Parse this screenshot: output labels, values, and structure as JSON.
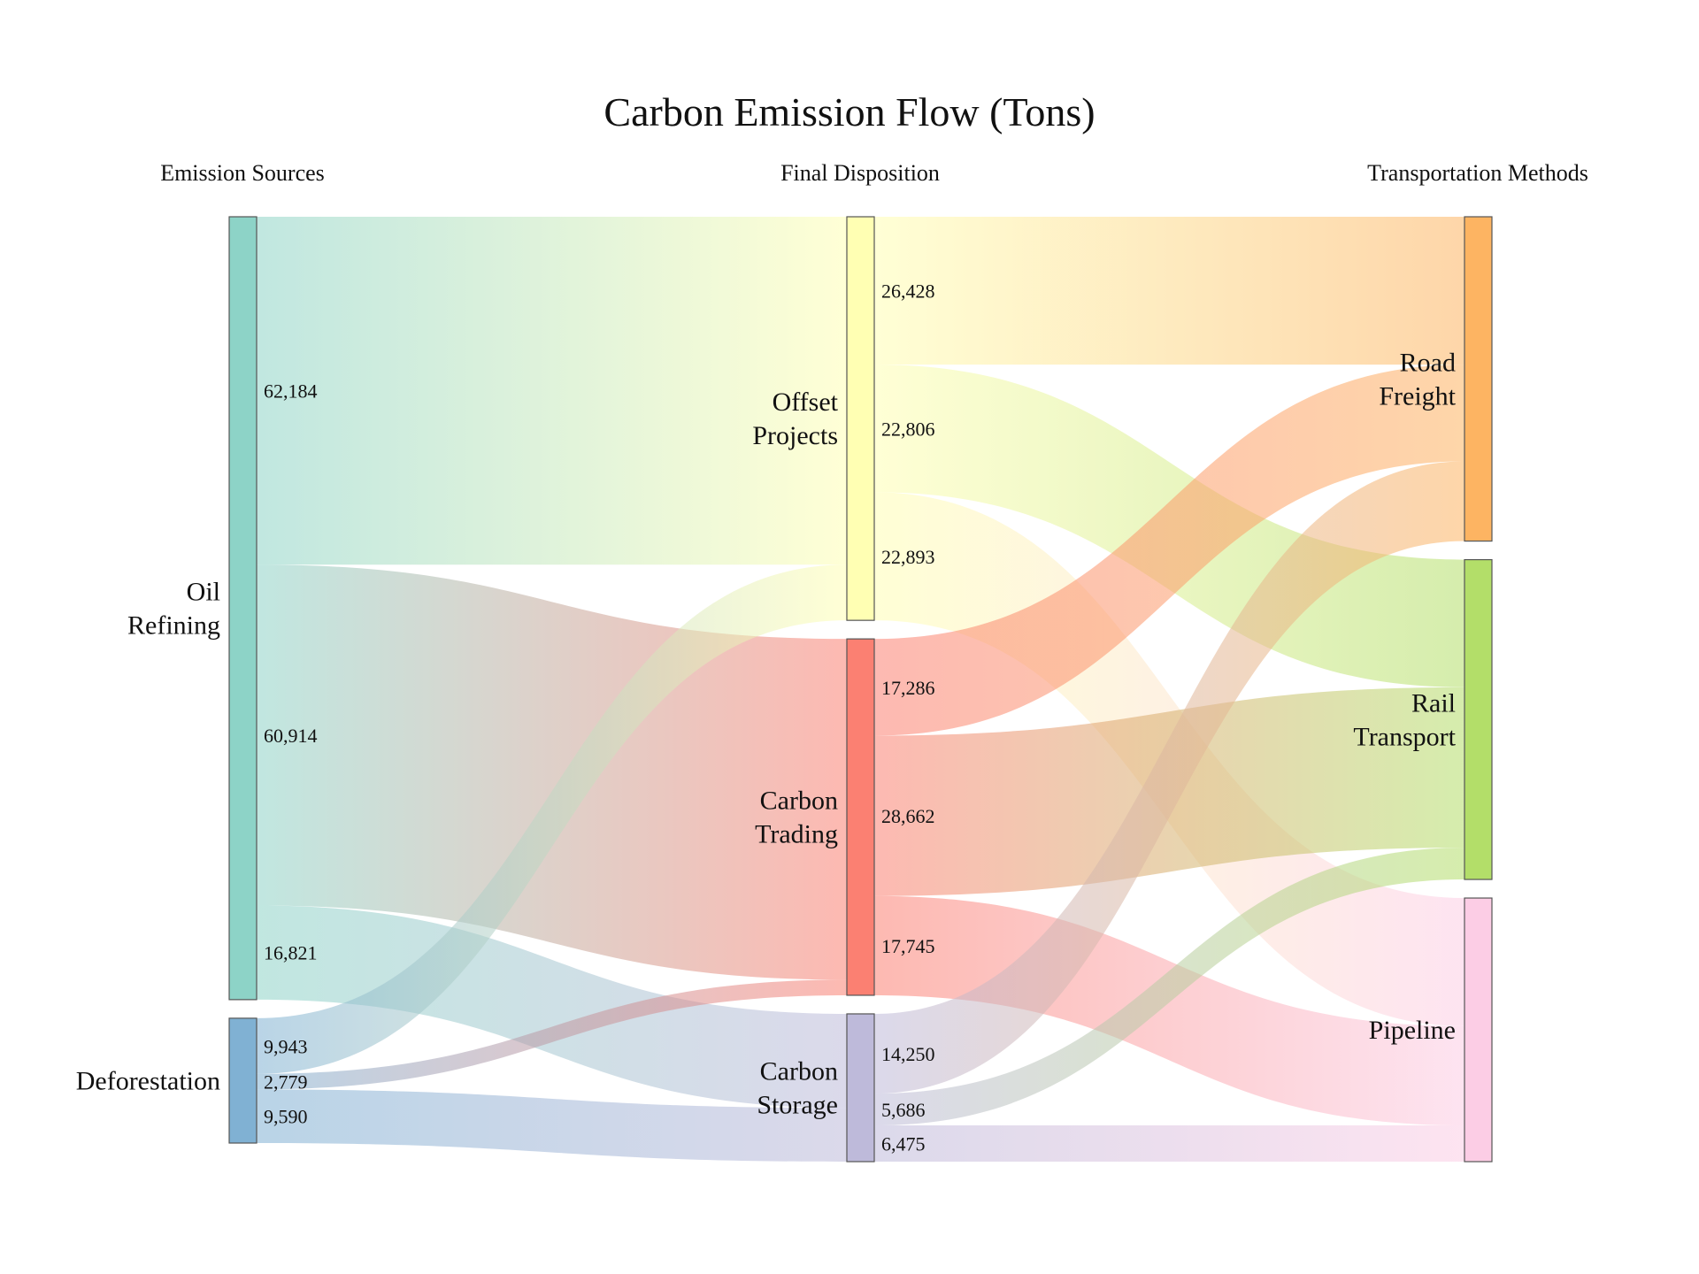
{
  "chart_data": {
    "type": "sankey",
    "title": "Carbon Emission Flow (Tons)",
    "column_headers": [
      "Emission Sources",
      "Final Disposition",
      "Transportation Methods"
    ],
    "nodes": [
      {
        "id": "oil",
        "label_lines": [
          "Oil",
          "Refining"
        ],
        "column": 0,
        "color": "#8dd3c7"
      },
      {
        "id": "def",
        "label_lines": [
          "Deforestation"
        ],
        "column": 0,
        "color": "#80b1d3"
      },
      {
        "id": "off",
        "label_lines": [
          "Offset",
          "Projects"
        ],
        "column": 1,
        "color": "#ffffb3"
      },
      {
        "id": "trd",
        "label_lines": [
          "Carbon",
          "Trading"
        ],
        "column": 1,
        "color": "#fb8072"
      },
      {
        "id": "sto",
        "label_lines": [
          "Carbon",
          "Storage"
        ],
        "column": 1,
        "color": "#bebada"
      },
      {
        "id": "road",
        "label_lines": [
          "Road",
          "Freight"
        ],
        "column": 2,
        "color": "#fdb462"
      },
      {
        "id": "rail",
        "label_lines": [
          "Rail",
          "Transport"
        ],
        "column": 2,
        "color": "#b3de69"
      },
      {
        "id": "pipe",
        "label_lines": [
          "Pipeline"
        ],
        "column": 2,
        "color": "#fccde5"
      }
    ],
    "links": [
      {
        "source": "oil",
        "target": "off",
        "value": 62184,
        "label": "62,184"
      },
      {
        "source": "oil",
        "target": "trd",
        "value": 60914,
        "label": "60,914"
      },
      {
        "source": "oil",
        "target": "sto",
        "value": 16821,
        "label": "16,821"
      },
      {
        "source": "def",
        "target": "off",
        "value": 9943,
        "label": "9,943"
      },
      {
        "source": "def",
        "target": "trd",
        "value": 2779,
        "label": "2,779"
      },
      {
        "source": "def",
        "target": "sto",
        "value": 9590,
        "label": "9,590"
      },
      {
        "source": "off",
        "target": "road",
        "value": 26428,
        "label": "26,428"
      },
      {
        "source": "off",
        "target": "rail",
        "value": 22806,
        "label": "22,806"
      },
      {
        "source": "off",
        "target": "pipe",
        "value": 22893,
        "label": "22,893"
      },
      {
        "source": "trd",
        "target": "road",
        "value": 17286,
        "label": "17,286"
      },
      {
        "source": "trd",
        "target": "rail",
        "value": 28662,
        "label": "28,662"
      },
      {
        "source": "trd",
        "target": "pipe",
        "value": 17745,
        "label": "17,745"
      },
      {
        "source": "sto",
        "target": "road",
        "value": 14250,
        "label": "14,250"
      },
      {
        "source": "sto",
        "target": "rail",
        "value": 5686,
        "label": "5,686"
      },
      {
        "source": "sto",
        "target": "pipe",
        "value": 6475,
        "label": "6,475"
      }
    ]
  }
}
